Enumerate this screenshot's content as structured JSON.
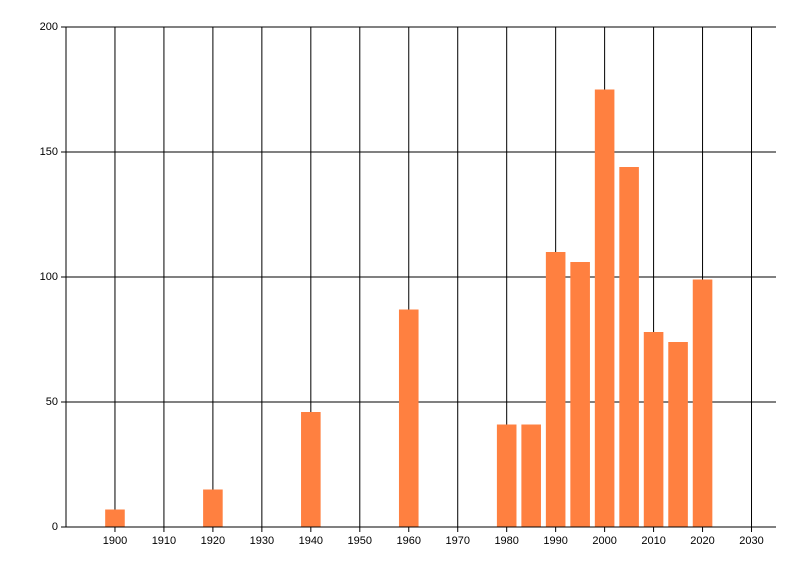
{
  "chart_data": {
    "type": "bar",
    "x": [
      1900,
      1920,
      1940,
      1960,
      1980,
      1985,
      1990,
      1995,
      2000,
      2005,
      2010,
      2015,
      2020
    ],
    "values": [
      7,
      15,
      46,
      87,
      41,
      41,
      110,
      106,
      175,
      144,
      78,
      74,
      99
    ],
    "color": "#ff8040",
    "xlim": [
      1890,
      2035
    ],
    "xticks": [
      1900,
      1910,
      1920,
      1930,
      1940,
      1950,
      1960,
      1970,
      1980,
      1990,
      2000,
      2010,
      2020,
      2030
    ],
    "ylim": [
      0,
      200
    ],
    "yticks": [
      0,
      50,
      100,
      150,
      200
    ],
    "grid": true
  }
}
